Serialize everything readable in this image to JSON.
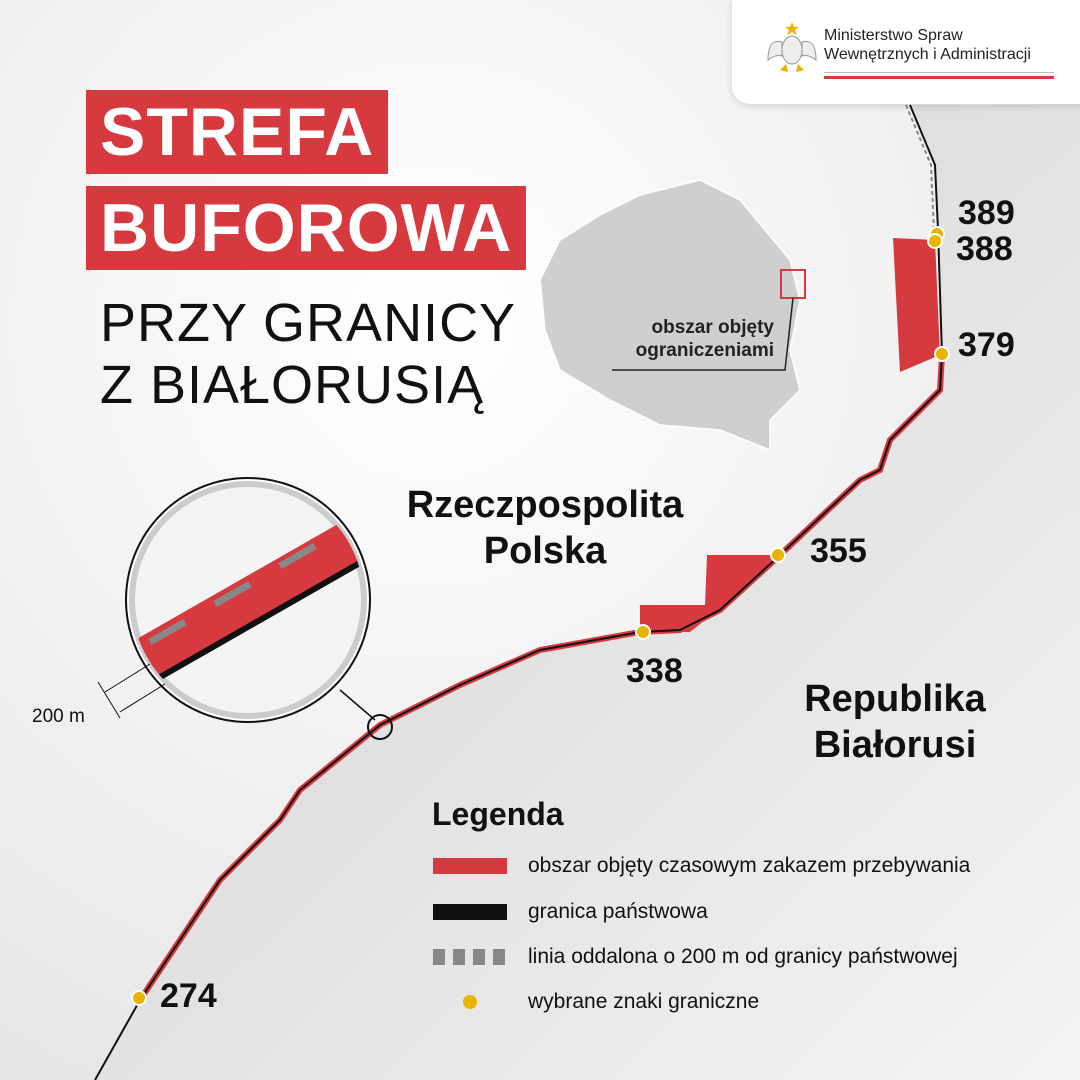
{
  "title": {
    "line1": "STREFA",
    "line2": "BUFOROWA",
    "subtitle_line1": "PRZY GRANICY",
    "subtitle_line2": "Z BIAŁORUSIĄ"
  },
  "logo": {
    "line1": "Ministerstwo Spraw",
    "line2": "Wewnętrznych i Administracji",
    "icon": "polish-eagle-emblem"
  },
  "map": {
    "countries": {
      "poland": "Rzeczpospolita Polska",
      "belarus_line1": "Republika",
      "belarus_line2": "Białorusi"
    },
    "callout": {
      "line1": "obszar objęty",
      "line2": "ograniczeniami"
    },
    "border_markers": [
      "389",
      "388",
      "379",
      "355",
      "338",
      "274"
    ],
    "scale_label": "200 m"
  },
  "legend": {
    "title": "Legenda",
    "items": [
      {
        "label": "obszar objęty czasowym zakazem przebywania",
        "symbol": "red-bar"
      },
      {
        "label": "granica państwowa",
        "symbol": "black-bar"
      },
      {
        "label": "linia oddalona o 200 m od granicy państwowej",
        "symbol": "gray-dashed"
      },
      {
        "label": "wybrane znaki graniczne",
        "symbol": "yellow-dot"
      }
    ]
  },
  "colors": {
    "red": "#d63a3f",
    "marker": "#e8b400",
    "belarus": "#c9c9c9",
    "border": "#111111"
  }
}
